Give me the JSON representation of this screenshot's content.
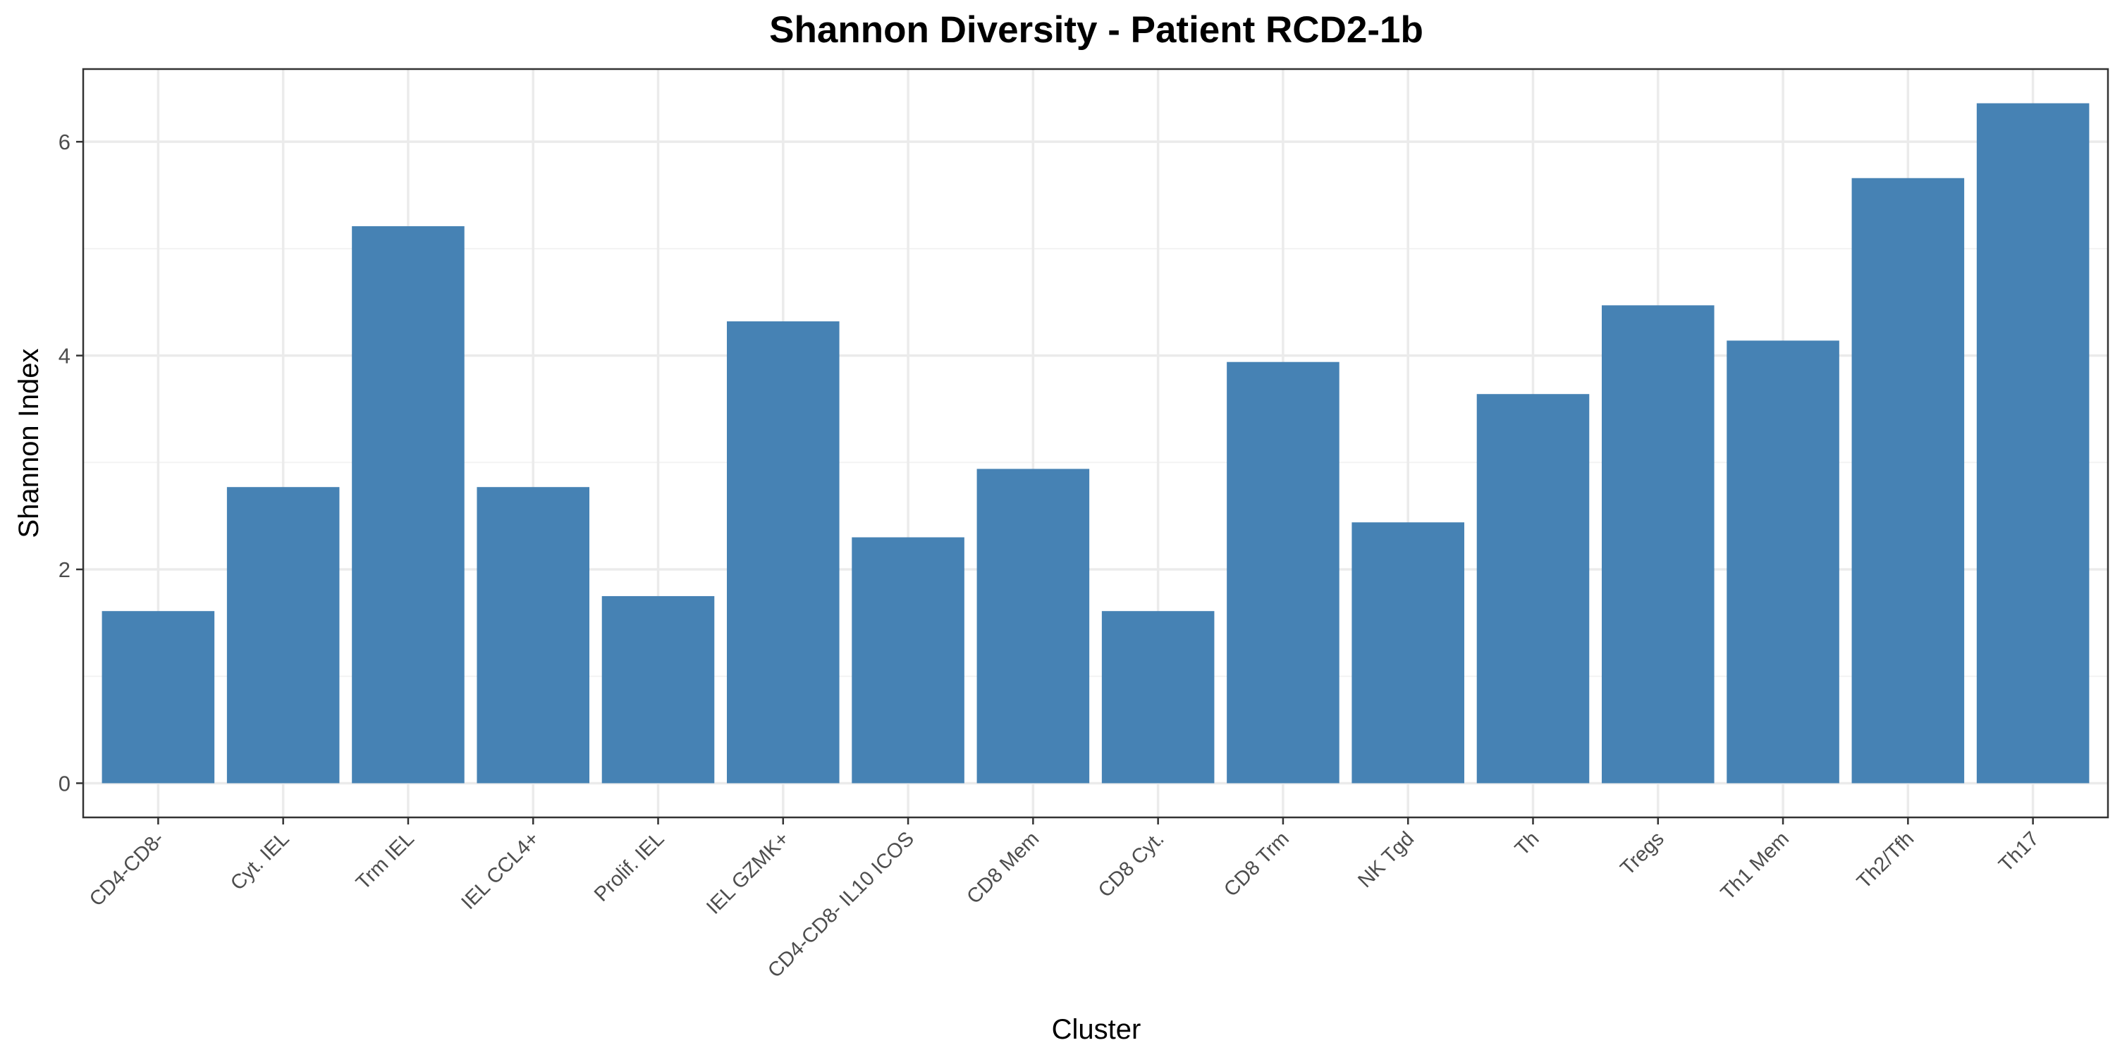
{
  "chart_data": {
    "type": "bar",
    "title": "Shannon Diversity - Patient RCD2-1b",
    "xlabel": "Cluster",
    "ylabel": "Shannon Index",
    "categories": [
      "CD4-CD8-",
      "Cyt. IEL",
      "Trm IEL",
      "IEL CCL4+",
      "Prolif. IEL",
      "IEL GZMK+",
      "CD4-CD8- IL10 ICOS",
      "CD8 Mem",
      "CD8 Cyt.",
      "CD8 Trm",
      "NK Tgd",
      "Th",
      "Tregs",
      "Th1 Mem",
      "Th2/Tfh",
      "Th17"
    ],
    "values": [
      1.61,
      2.77,
      5.21,
      2.77,
      1.75,
      4.32,
      2.3,
      2.94,
      1.61,
      3.94,
      2.44,
      3.64,
      4.47,
      4.14,
      5.66,
      6.36
    ],
    "ylim": [
      -0.32,
      6.68
    ],
    "yticks": [
      0,
      2,
      4,
      6
    ],
    "ytick_labels": [
      "0",
      "2",
      "4",
      "6"
    ],
    "grid": true,
    "bar_color": "#4682b4",
    "legend": "none"
  }
}
